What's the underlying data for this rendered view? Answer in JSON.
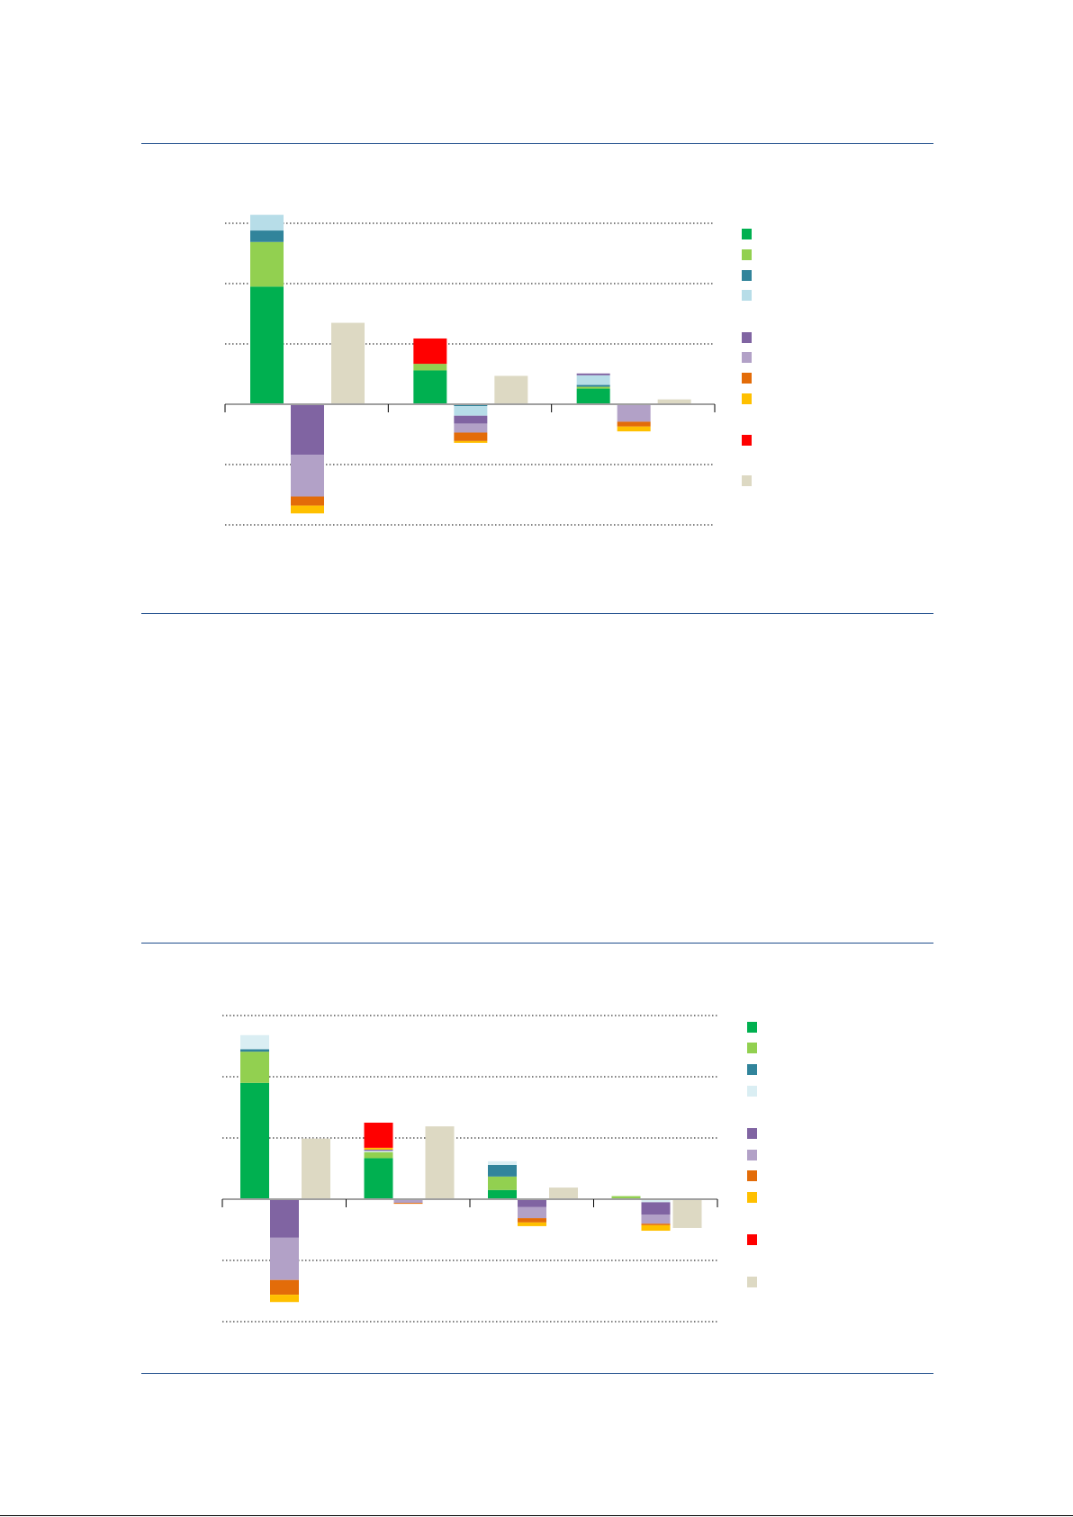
{
  "chart_data": [
    {
      "type": "bar",
      "stacked": true,
      "ylim": [
        -2,
        3
      ],
      "grid": true,
      "legend_placement": "right",
      "series_colors": [
        "#00b050",
        "#92d050",
        "#31849b",
        "#b7dde8",
        "#8064a2",
        "#b2a1c7",
        "#e36c09",
        "#ffc000",
        "#ff0000",
        "#ddd9c3"
      ],
      "groups": [
        {
          "bars": [
            {
              "segments": [
                [
                  0,
                  1.95
                ],
                [
                  1,
                  0.74
                ],
                [
                  2,
                  0.19
                ],
                [
                  3,
                  0.26
                ]
              ]
            },
            {
              "segments": [
                [
                  4,
                  -0.84
                ],
                [
                  5,
                  -0.69
                ],
                [
                  6,
                  -0.15
                ],
                [
                  7,
                  -0.13
                ]
              ]
            },
            {
              "segments": [
                [
                  9,
                  1.35
                ]
              ]
            }
          ]
        },
        {
          "bars": [
            {
              "segments": [
                [
                  0,
                  0.56
                ],
                [
                  1,
                  0.11
                ],
                [
                  8,
                  0.42
                ]
              ]
            },
            {
              "segments": [
                [
                  2,
                  -0.03
                ],
                [
                  3,
                  -0.16
                ],
                [
                  4,
                  -0.13
                ],
                [
                  5,
                  -0.15
                ],
                [
                  6,
                  -0.14
                ],
                [
                  7,
                  -0.03
                ]
              ]
            },
            {
              "segments": [
                [
                  9,
                  0.47
                ]
              ]
            }
          ]
        },
        {
          "bars": [
            {
              "segments": [
                [
                  0,
                  0.26
                ],
                [
                  1,
                  0.03
                ],
                [
                  2,
                  0.03
                ],
                [
                  3,
                  0.16
                ],
                [
                  4,
                  0.03
                ]
              ]
            },
            {
              "segments": [
                [
                  5,
                  -0.29
                ],
                [
                  6,
                  -0.08
                ],
                [
                  7,
                  -0.08
                ]
              ]
            },
            {
              "segments": [
                [
                  9,
                  0.08
                ]
              ]
            }
          ]
        }
      ]
    },
    {
      "type": "bar",
      "stacked": true,
      "ylim": [
        -2,
        3
      ],
      "grid": true,
      "legend_placement": "right",
      "series_colors": [
        "#00b050",
        "#92d050",
        "#31849b",
        "#daeef3",
        "#8064a2",
        "#b2a1c7",
        "#e36c09",
        "#ffc000",
        "#ff0000",
        "#ddd9c3"
      ],
      "groups": [
        {
          "bars": [
            {
              "segments": [
                [
                  0,
                  1.9
                ],
                [
                  1,
                  0.51
                ],
                [
                  2,
                  0.04
                ],
                [
                  3,
                  0.23
                ]
              ]
            },
            {
              "segments": [
                [
                  4,
                  -0.63
                ],
                [
                  5,
                  -0.69
                ],
                [
                  6,
                  -0.24
                ],
                [
                  7,
                  -0.12
                ]
              ]
            },
            {
              "segments": [
                [
                  9,
                  0.99
                ]
              ]
            }
          ]
        },
        {
          "bars": [
            {
              "segments": [
                [
                  0,
                  0.67
                ],
                [
                  1,
                  0.1
                ],
                [
                  3,
                  0.02
                ],
                [
                  4,
                  0.02
                ],
                [
                  7,
                  0.03
                ],
                [
                  8,
                  0.41
                ]
              ]
            },
            {
              "segments": [
                [
                  5,
                  -0.06
                ],
                [
                  6,
                  -0.015
                ]
              ]
            },
            {
              "segments": [
                [
                  9,
                  1.19
                ]
              ]
            }
          ]
        },
        {
          "bars": [
            {
              "segments": [
                [
                  0,
                  0.15
                ],
                [
                  1,
                  0.22
                ],
                [
                  2,
                  0.19
                ],
                [
                  3,
                  0.06
                ]
              ]
            },
            {
              "segments": [
                [
                  4,
                  -0.13
                ],
                [
                  5,
                  -0.18
                ],
                [
                  6,
                  -0.07
                ],
                [
                  7,
                  -0.06
                ]
              ]
            },
            {
              "segments": [
                [
                  9,
                  0.19
                ]
              ]
            }
          ]
        },
        {
          "bars": [
            {
              "segments": [
                [
                  1,
                  0.05
                ]
              ]
            },
            {
              "segments": [
                [
                  3,
                  -0.05
                ],
                [
                  4,
                  -0.2
                ],
                [
                  5,
                  -0.15
                ],
                [
                  6,
                  -0.025
                ],
                [
                  7,
                  -0.09
                ]
              ]
            },
            {
              "segments": [
                [
                  9,
                  -0.47
                ]
              ]
            }
          ]
        }
      ]
    }
  ]
}
